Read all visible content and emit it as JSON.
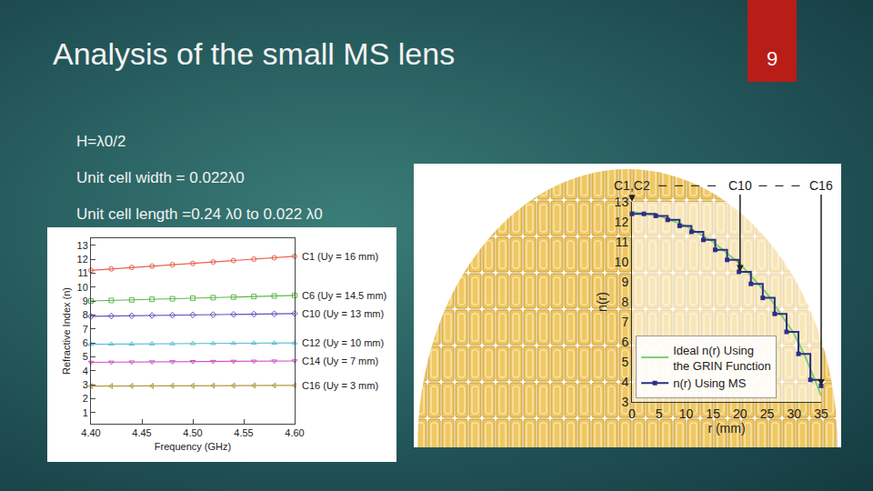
{
  "slide": {
    "title": "Analysis of the small MS lens",
    "page": "9",
    "bullets": [
      "H=λ0/2",
      "Unit cell width = 0.022λ0",
      "Unit cell length =0.24 λ0 to 0.022 λ0"
    ]
  },
  "chart_data": [
    {
      "type": "line",
      "xlabel": "Frequency (GHz)",
      "ylabel": "Refractive Index (n)",
      "x": [
        4.4,
        4.42,
        4.44,
        4.46,
        4.48,
        4.5,
        4.52,
        4.54,
        4.56,
        4.58,
        4.6
      ],
      "series": [
        {
          "name": "C1 (Uy = 16 mm)",
          "color": "#e8604c",
          "marker": "circle",
          "values": [
            11.2,
            11.3,
            11.4,
            11.5,
            11.6,
            11.7,
            11.8,
            11.9,
            12.0,
            12.1,
            12.2
          ]
        },
        {
          "name": "C6 (Uy = 14.5 mm)",
          "color": "#5cb84a",
          "marker": "square",
          "values": [
            9.0,
            9.04,
            9.08,
            9.12,
            9.16,
            9.2,
            9.24,
            9.28,
            9.32,
            9.36,
            9.4
          ]
        },
        {
          "name": "C10 (Uy = 13 mm)",
          "color": "#6650c0",
          "marker": "diamond",
          "values": [
            7.9,
            7.92,
            7.94,
            7.96,
            7.98,
            8.0,
            8.02,
            8.04,
            8.06,
            8.08,
            8.1
          ]
        },
        {
          "name": "C12 (Uy = 10 mm)",
          "color": "#5bbfd2",
          "marker": "triangle-up",
          "values": [
            5.9,
            5.91,
            5.92,
            5.93,
            5.94,
            5.95,
            5.96,
            5.97,
            5.98,
            5.99,
            6.0
          ]
        },
        {
          "name": "C14 (Uy = 7 mm)",
          "color": "#cf55c4",
          "marker": "triangle-down",
          "values": [
            4.6,
            4.61,
            4.62,
            4.63,
            4.64,
            4.65,
            4.66,
            4.67,
            4.68,
            4.69,
            4.7
          ]
        },
        {
          "name": "C16 (Uy = 3 mm)",
          "color": "#b09a3e",
          "marker": "triangle-left",
          "values": [
            2.9,
            2.9,
            2.91,
            2.91,
            2.92,
            2.92,
            2.93,
            2.93,
            2.94,
            2.94,
            2.95
          ]
        }
      ],
      "xlim": [
        4.4,
        4.6
      ],
      "xticks": [
        {
          "value": 4.4,
          "label": "4.40"
        },
        4.45,
        {
          "value": 4.5,
          "label": "4.50"
        },
        4.55,
        {
          "value": 4.6,
          "label": "4.60"
        }
      ],
      "ylim": [
        0.2,
        13.5
      ],
      "yticks": [
        1,
        2,
        3,
        4,
        5,
        6,
        7,
        8,
        9,
        10,
        11,
        12,
        13
      ],
      "grid": false
    },
    {
      "type": "line",
      "xlabel": "r (mm)",
      "ylabel": "n(r)",
      "legend": "lower left",
      "series": [
        {
          "name": "Ideal n(r) Using the GRIN Function",
          "color": "#7fd06e",
          "line_style": "solid",
          "x": [
            0,
            5,
            10,
            15,
            20,
            25,
            30,
            32,
            34,
            35
          ],
          "values": [
            12.5,
            12.3,
            11.8,
            11.0,
            9.9,
            8.4,
            6.4,
            5.3,
            4.0,
            3.3
          ]
        },
        {
          "name": "n(r) Using MS",
          "color": "#2c2f86",
          "marker": "square",
          "line_style": "steps",
          "x": [
            0,
            2.2,
            4.4,
            6.6,
            8.8,
            11,
            13.2,
            15.4,
            17.6,
            19.8,
            22,
            24.2,
            26.4,
            28.6,
            30.8,
            33,
            35
          ],
          "values": [
            12.4,
            12.4,
            12.3,
            12.1,
            11.8,
            11.5,
            11.1,
            10.6,
            10.1,
            9.5,
            8.9,
            8.2,
            7.4,
            6.5,
            5.4,
            4.1,
            3.8
          ]
        }
      ],
      "annotations": [
        {
          "text": "C1,C2",
          "x": 0,
          "y": 13
        },
        {
          "text": "C10",
          "x": 20,
          "y": 9.5
        },
        {
          "text": "C16",
          "x": 35,
          "y": 3.8
        }
      ],
      "xlim": [
        0,
        35
      ],
      "xticks": [
        0,
        5,
        10,
        15,
        20,
        25,
        30,
        35
      ],
      "ylim": [
        3,
        13
      ],
      "yticks": [
        3,
        4,
        5,
        6,
        7,
        8,
        9,
        10,
        11,
        12,
        13
      ],
      "grid": false
    }
  ]
}
